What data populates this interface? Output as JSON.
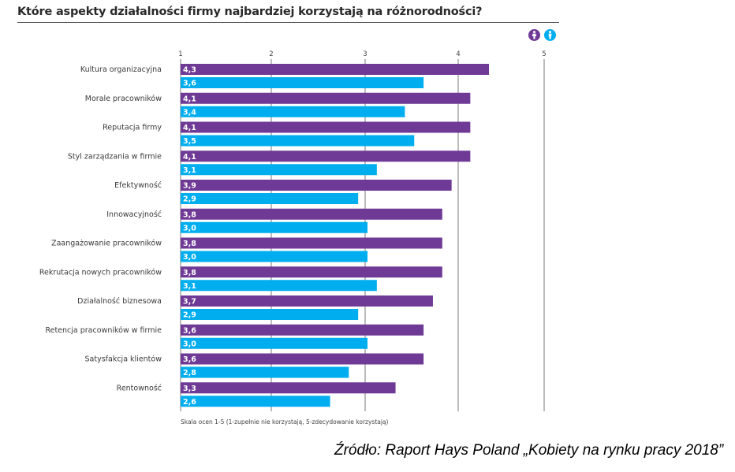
{
  "title": "Które aspekty działalności firmy najbardziej korzystają na różnorodności?",
  "legend": [
    {
      "name": "female-icon",
      "color": "#6f3996"
    },
    {
      "name": "male-icon",
      "color": "#00aeef"
    }
  ],
  "note": "Skala ocen 1-5 (1-zupełnie nie korzystają, 5-zdecydowanie korzystają)",
  "source": "Źródło: Raport Hays Poland „Kobiety na rynku pracy 2018”",
  "chart_data": {
    "type": "bar",
    "orientation": "horizontal",
    "title": "Które aspekty działalności firmy najbardziej korzystają na różnorodności?",
    "xlabel": "",
    "ylabel": "",
    "xlim": [
      1,
      5
    ],
    "x_ticks": [
      "1",
      "2",
      "3",
      "4",
      "5"
    ],
    "grid": true,
    "legend_position": "top-right",
    "categories": [
      "Kultura organizacyjna",
      "Morale pracowników",
      "Reputacja firmy",
      "Styl zarządzania w firmie",
      "Efektywność",
      "Innowacyjność",
      "Zaangażowanie pracowników",
      "Rekrutacja nowych pracowników",
      "Działalność biznesowa",
      "Retencja pracowników w firmie",
      "Satysfakcja klientów",
      "Rentowność"
    ],
    "series": [
      {
        "name": "Kobiety",
        "color": "#6f3996",
        "values": [
          4.3,
          4.1,
          4.1,
          4.1,
          3.9,
          3.8,
          3.8,
          3.8,
          3.7,
          3.6,
          3.6,
          3.3
        ],
        "labels": [
          "4,3",
          "4,1",
          "4,1",
          "4,1",
          "3,9",
          "3,8",
          "3,8",
          "3,8",
          "3,7",
          "3,6",
          "3,6",
          "3,3"
        ]
      },
      {
        "name": "Mężczyźni",
        "color": "#00aeef",
        "values": [
          3.6,
          3.4,
          3.5,
          3.1,
          2.9,
          3.0,
          3.0,
          3.1,
          2.9,
          3.0,
          2.8,
          2.6
        ],
        "labels": [
          "3,6",
          "3,4",
          "3,5",
          "3,1",
          "2,9",
          "3,0",
          "3,0",
          "3,1",
          "2,9",
          "3,0",
          "2,8",
          "2,6"
        ]
      }
    ]
  }
}
